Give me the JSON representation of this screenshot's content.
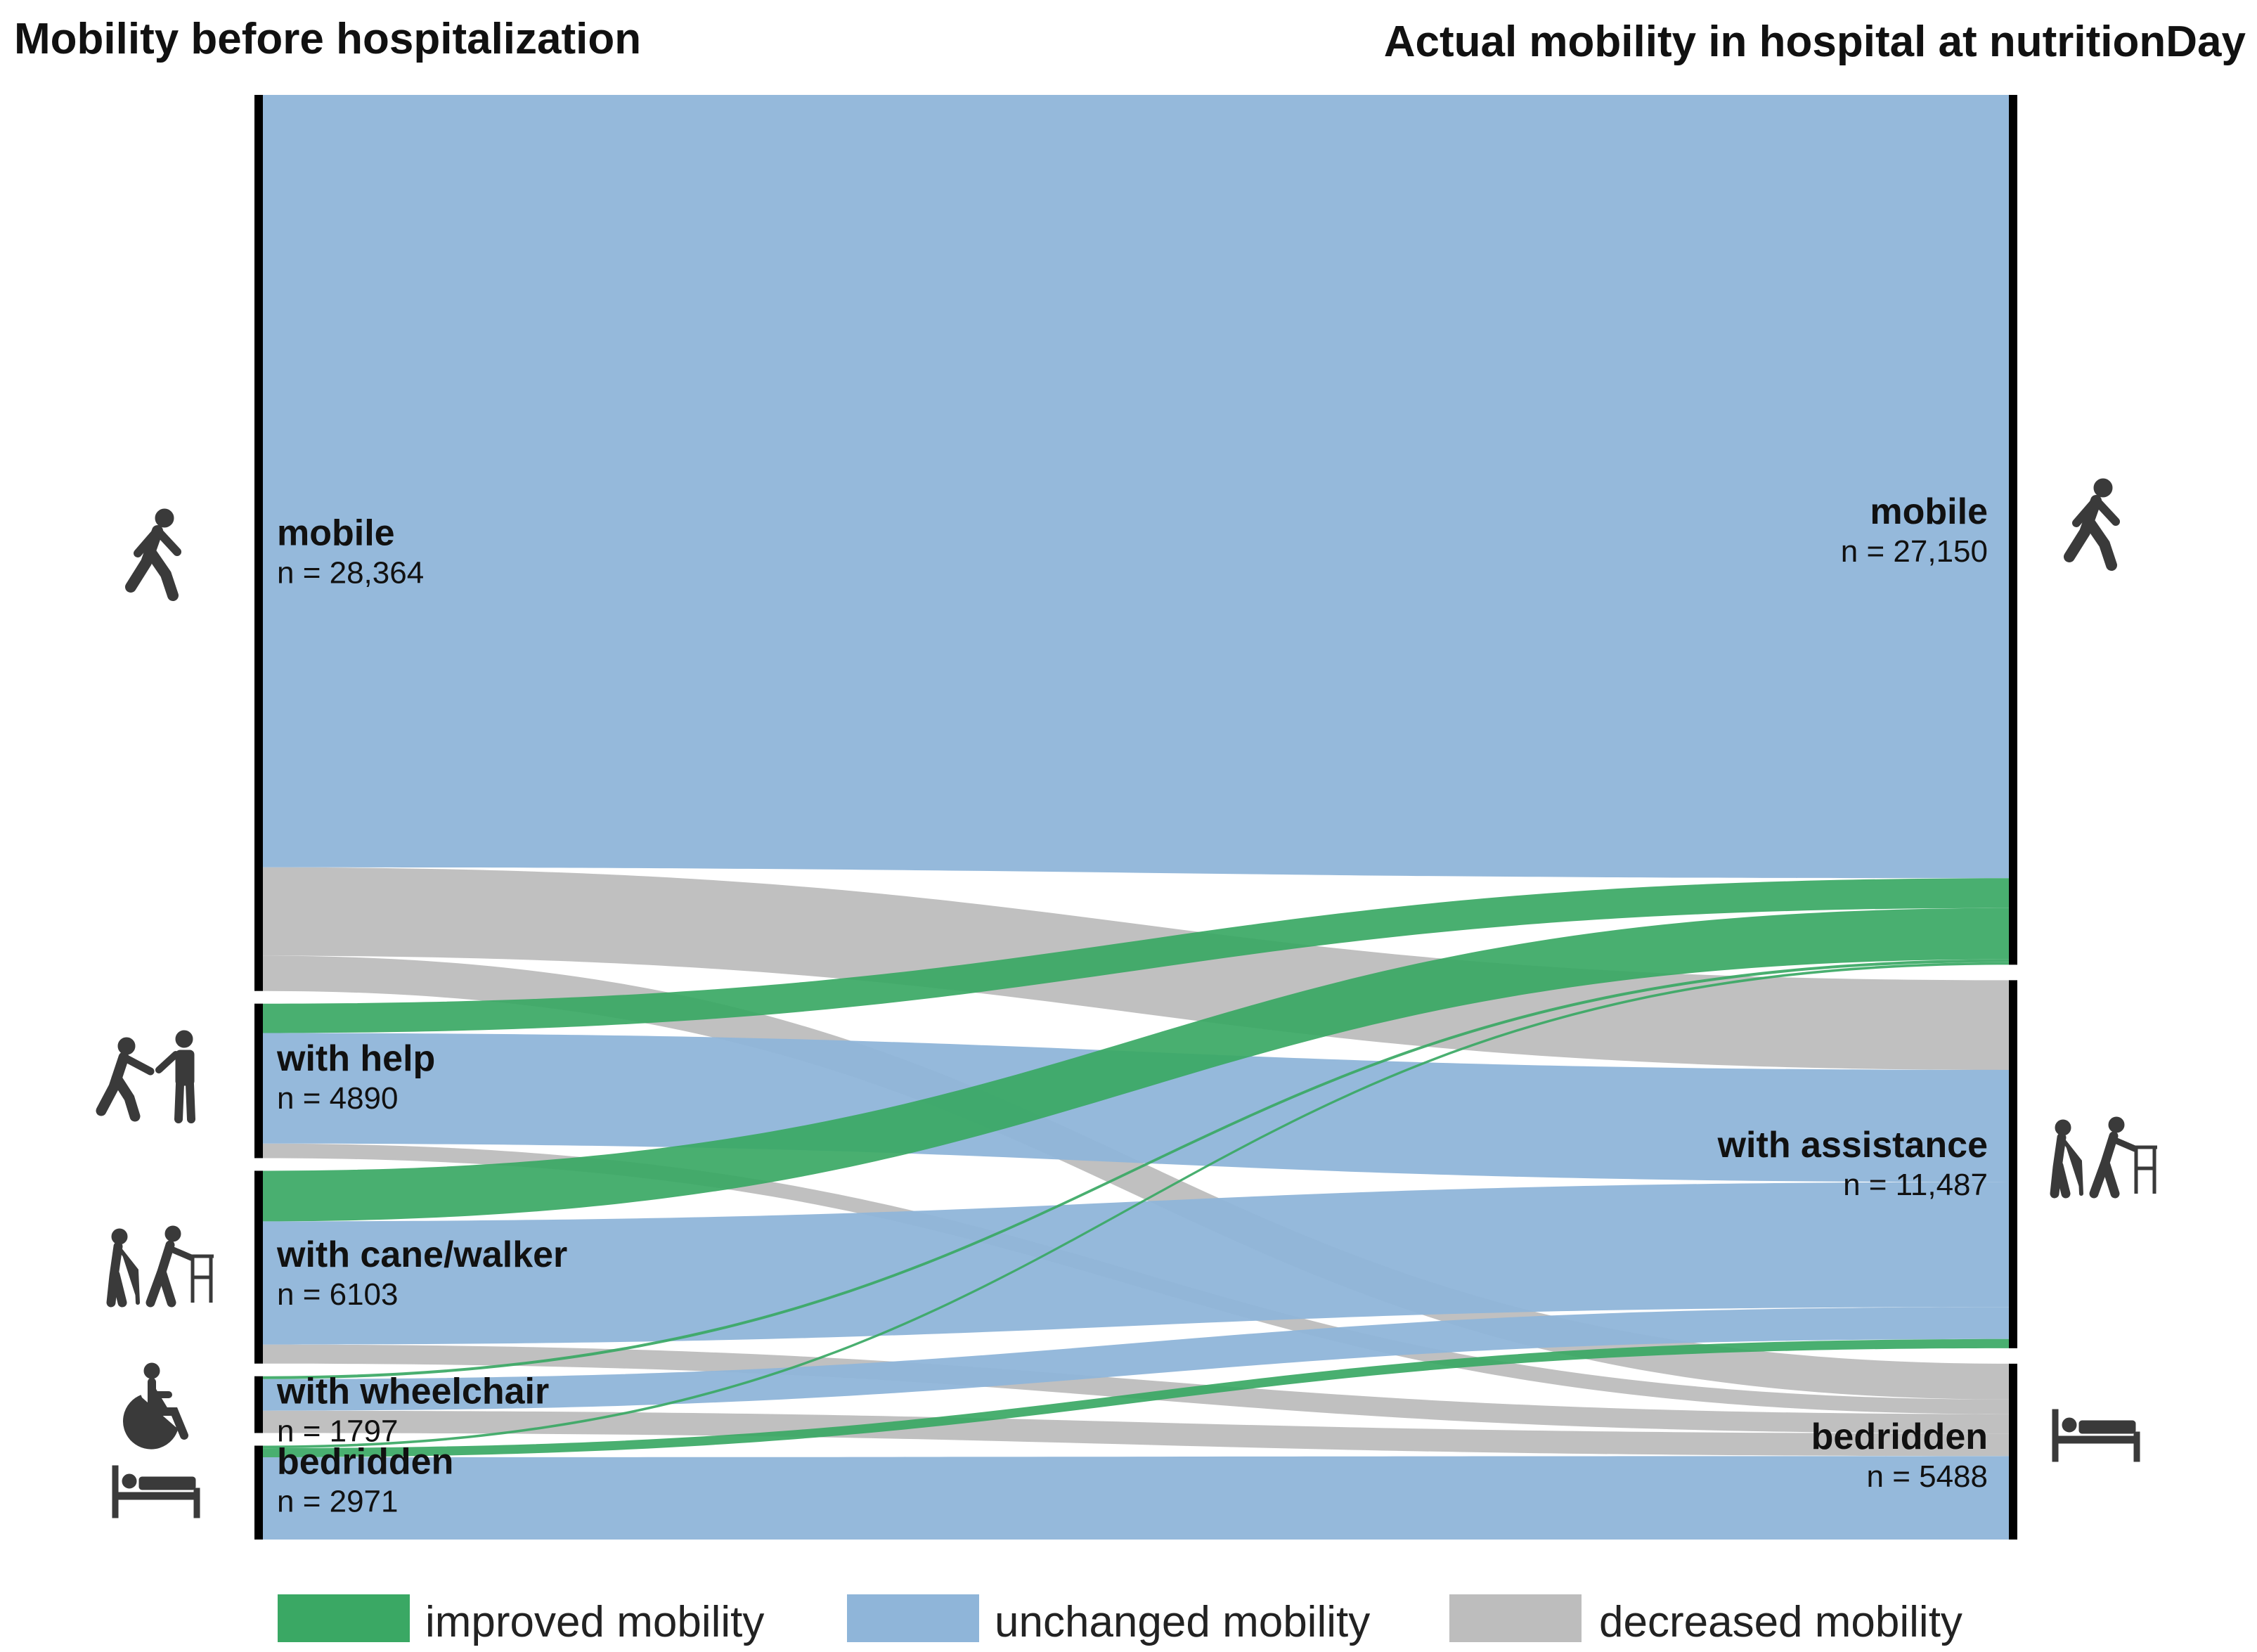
{
  "headers": {
    "left": "Mobility before hospitalization",
    "right": "Actual mobility in hospital at nutritionDay"
  },
  "colors": {
    "improved": "#3aa864",
    "unchanged": "#8fb5d9",
    "decreased": "#bdbdbd",
    "node_bar": "#000000"
  },
  "legend": [
    {
      "key": "improved",
      "label": "improved mobility"
    },
    {
      "key": "unchanged",
      "label": "unchanged mobility"
    },
    {
      "key": "decreased",
      "label": "decreased mobility"
    }
  ],
  "chart_data": {
    "type": "sankey",
    "left_nodes": [
      {
        "id": "mobile",
        "label": "mobile",
        "count_label": "n = 28,364",
        "n": 28364,
        "icon": "walking-person-icon"
      },
      {
        "id": "help",
        "label": "with help",
        "count_label": "n = 4890",
        "n": 4890,
        "icon": "assisted-walking-icon"
      },
      {
        "id": "cane",
        "label": "with cane/walker",
        "count_label": "n = 6103",
        "n": 6103,
        "icon": "cane-walker-icon"
      },
      {
        "id": "wheelchair",
        "label": "with wheelchair",
        "count_label": "n = 1797",
        "n": 1797,
        "icon": "wheelchair-icon"
      },
      {
        "id": "bedridden_l",
        "label": "bedridden",
        "count_label": "n = 2971",
        "n": 2971,
        "icon": "bed-icon"
      }
    ],
    "right_nodes": [
      {
        "id": "mobile_r",
        "label": "mobile",
        "count_label": "n = 27,150",
        "n": 27150,
        "icon": "walking-person-icon"
      },
      {
        "id": "assist_r",
        "label": "with assistance",
        "count_label": "n = 11,487",
        "n": 11487,
        "icon": "cane-walker-icon"
      },
      {
        "id": "bed_r",
        "label": "bedridden",
        "count_label": "n = 5488",
        "n": 5488,
        "icon": "bed-icon"
      }
    ],
    "links": [
      {
        "source": "mobile",
        "target": "mobile_r",
        "value": 24450,
        "kind": "unchanged"
      },
      {
        "source": "mobile",
        "target": "assist_r",
        "value": 2800,
        "kind": "decreased"
      },
      {
        "source": "mobile",
        "target": "bed_r",
        "value": 1114,
        "kind": "decreased"
      },
      {
        "source": "help",
        "target": "mobile_r",
        "value": 930,
        "kind": "improved"
      },
      {
        "source": "help",
        "target": "assist_r",
        "value": 3500,
        "kind": "unchanged"
      },
      {
        "source": "help",
        "target": "bed_r",
        "value": 460,
        "kind": "decreased"
      },
      {
        "source": "cane",
        "target": "mobile_r",
        "value": 1600,
        "kind": "improved"
      },
      {
        "source": "cane",
        "target": "assist_r",
        "value": 3900,
        "kind": "unchanged"
      },
      {
        "source": "cane",
        "target": "bed_r",
        "value": 603,
        "kind": "decreased"
      },
      {
        "source": "wheelchair",
        "target": "mobile_r",
        "value": 90,
        "kind": "improved"
      },
      {
        "source": "wheelchair",
        "target": "assist_r",
        "value": 1000,
        "kind": "unchanged"
      },
      {
        "source": "wheelchair",
        "target": "bed_r",
        "value": 707,
        "kind": "decreased"
      },
      {
        "source": "bedridden_l",
        "target": "mobile_r",
        "value": 80,
        "kind": "improved"
      },
      {
        "source": "bedridden_l",
        "target": "assist_r",
        "value": 287,
        "kind": "improved"
      },
      {
        "source": "bedridden_l",
        "target": "bed_r",
        "value": 2604,
        "kind": "unchanged"
      }
    ]
  }
}
